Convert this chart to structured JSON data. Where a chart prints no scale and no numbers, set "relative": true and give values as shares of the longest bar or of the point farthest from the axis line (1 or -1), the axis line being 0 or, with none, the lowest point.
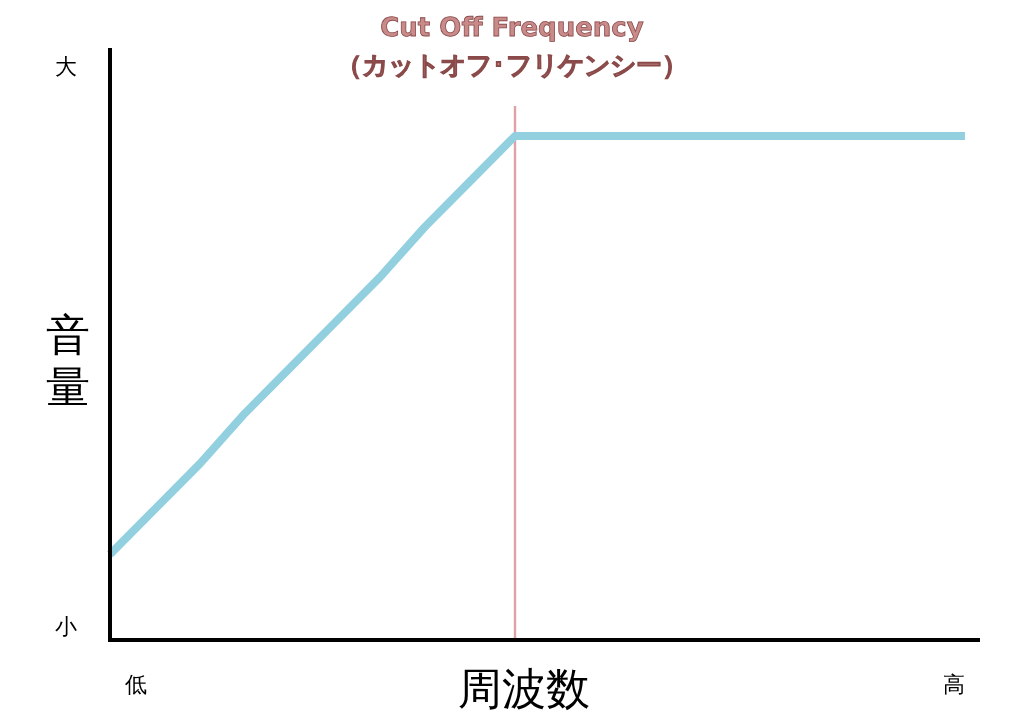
{
  "chart_data": {
    "type": "line",
    "title": "Cut Off Frequency",
    "subtitle": "（カットオフ･フリケンシー）",
    "xlabel": "周波数",
    "ylabel": "音量",
    "relative": true,
    "annotations": [
      "大",
      "小",
      "低",
      "高"
    ],
    "categories": [
      null,
      null,
      null,
      null,
      null,
      null,
      null,
      null,
      null,
      null,
      null,
      null,
      null,
      null,
      null,
      null,
      null,
      null,
      null,
      null
    ],
    "series": [
      {
        "color": "#92d0e0",
        "values": [
          0.17,
          0.26,
          0.35,
          0.45,
          0.54,
          0.63,
          0.72,
          0.82,
          0.91,
          1,
          1,
          1,
          1,
          1,
          1,
          1,
          1,
          1,
          1,
          1
        ]
      }
    ],
    "grid": false,
    "marker": "none",
    "line_style": "solid"
  }
}
